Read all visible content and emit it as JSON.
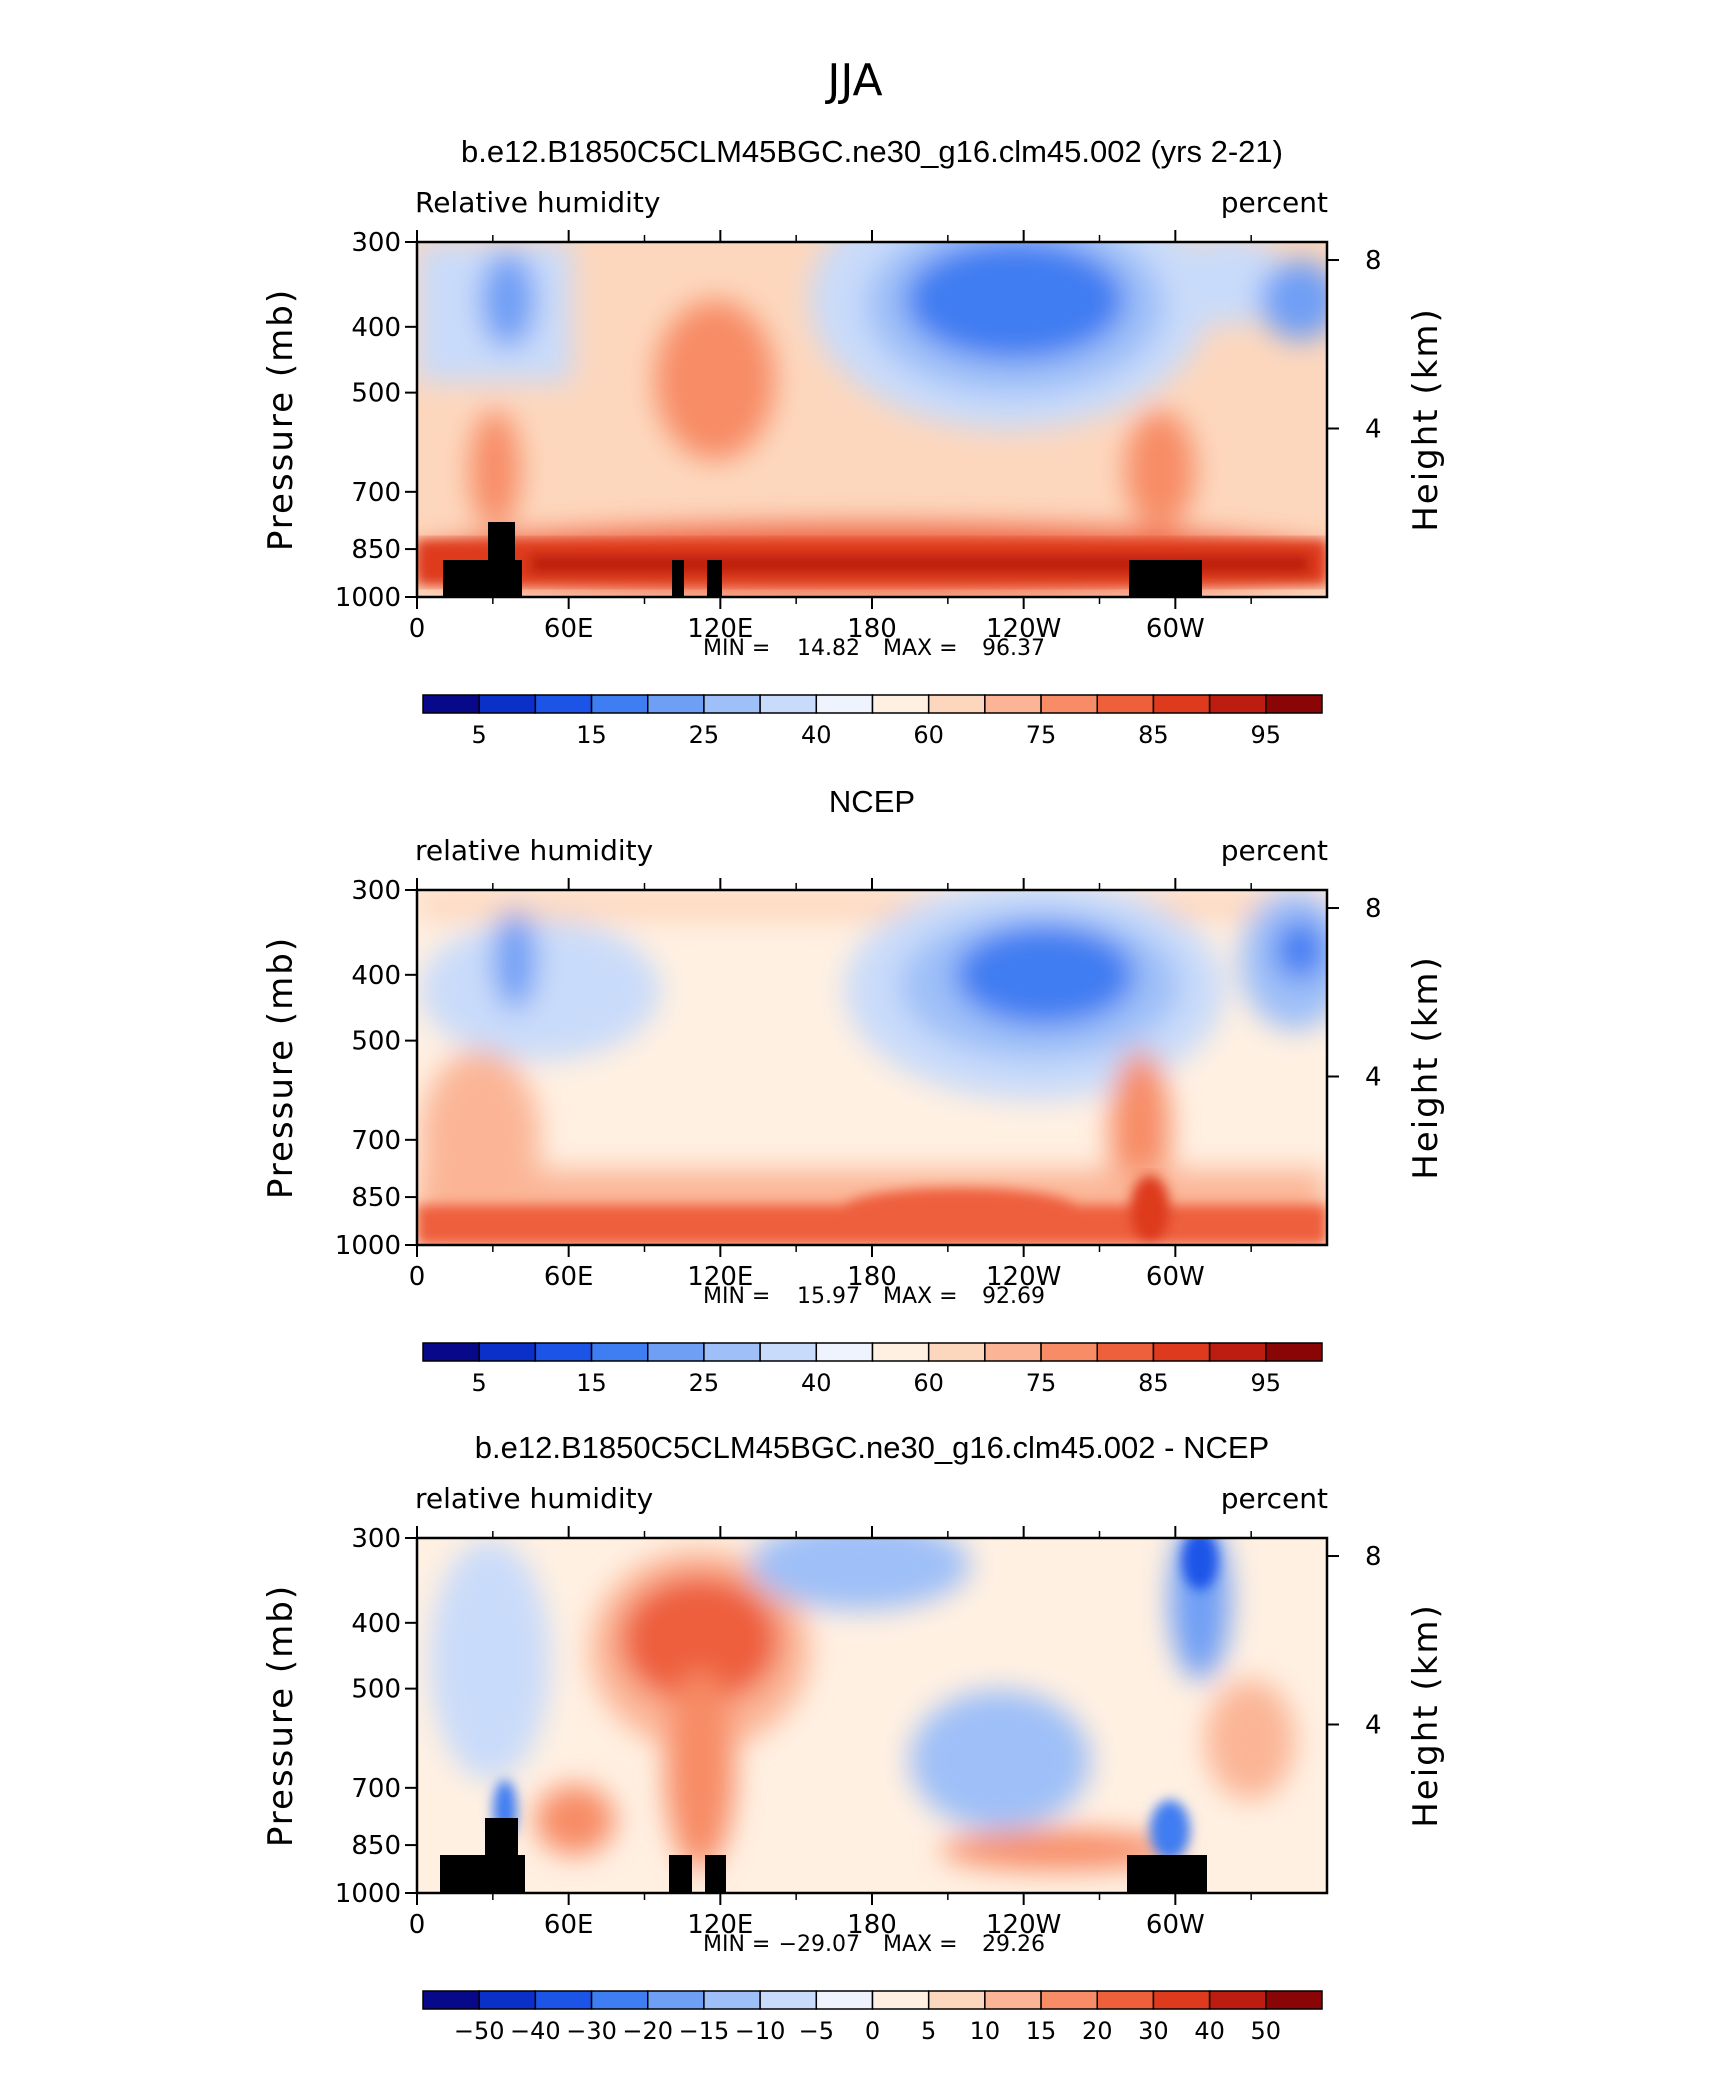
{
  "figure": {
    "title": "JJA",
    "footer_note": ""
  },
  "chart_data": [
    {
      "type": "heatmap",
      "title": "b.e12.B1850C5CLM45BGC.ne30_g16.clm45.002 (yrs 2-21)",
      "left_subtitle": "Relative humidity",
      "right_subtitle": "percent",
      "ylabel": "Pressure (mb)",
      "ylabel_right": "Height (km)",
      "y_ticks": [
        "300",
        "400",
        "500",
        "700",
        "850",
        "1000"
      ],
      "y_right_ticks": [
        "8",
        "4"
      ],
      "x_ticks": [
        "0",
        "60E",
        "120E",
        "180",
        "120W",
        "60W"
      ],
      "stats": {
        "min_label": "MIN =",
        "min": "14.82",
        "max_label": "MAX =",
        "max": "96.37"
      },
      "colorbar": {
        "labels": [
          "5",
          "15",
          "25",
          "40",
          "60",
          "75",
          "85",
          "95"
        ],
        "colors": [
          "#08088a",
          "#0b2fc9",
          "#1d54e8",
          "#3f7df2",
          "#6f9ff5",
          "#9ebff8",
          "#c9dbfa",
          "#eef3fd",
          "#fff0e2",
          "#fdd7bd",
          "#fbb596",
          "#f78c66",
          "#ee5f3c",
          "#de3a1d",
          "#bc1d10",
          "#8a0606"
        ]
      }
    },
    {
      "type": "heatmap",
      "title": "NCEP",
      "left_subtitle": "relative humidity",
      "right_subtitle": "percent",
      "ylabel": "Pressure (mb)",
      "ylabel_right": "Height (km)",
      "y_ticks": [
        "300",
        "400",
        "500",
        "700",
        "850",
        "1000"
      ],
      "y_right_ticks": [
        "8",
        "4"
      ],
      "x_ticks": [
        "0",
        "60E",
        "120E",
        "180",
        "120W",
        "60W"
      ],
      "stats": {
        "min_label": "MIN =",
        "min": "15.97",
        "max_label": "MAX =",
        "max": "92.69"
      },
      "colorbar": {
        "labels": [
          "5",
          "15",
          "25",
          "40",
          "60",
          "75",
          "85",
          "95"
        ],
        "colors": [
          "#08088a",
          "#0b2fc9",
          "#1d54e8",
          "#3f7df2",
          "#6f9ff5",
          "#9ebff8",
          "#c9dbfa",
          "#eef3fd",
          "#fff0e2",
          "#fdd7bd",
          "#fbb596",
          "#f78c66",
          "#ee5f3c",
          "#de3a1d",
          "#bc1d10",
          "#8a0606"
        ]
      }
    },
    {
      "type": "heatmap",
      "title": "b.e12.B1850C5CLM45BGC.ne30_g16.clm45.002 - NCEP",
      "left_subtitle": "relative humidity",
      "right_subtitle": "percent",
      "ylabel": "Pressure (mb)",
      "ylabel_right": "Height (km)",
      "y_ticks": [
        "300",
        "400",
        "500",
        "700",
        "850",
        "1000"
      ],
      "y_right_ticks": [
        "8",
        "4"
      ],
      "x_ticks": [
        "0",
        "60E",
        "120E",
        "180",
        "120W",
        "60W"
      ],
      "stats": {
        "min_label": "MIN =",
        "min": "−29.07",
        "max_label": "MAX =",
        "max": "29.26"
      },
      "colorbar": {
        "labels": [
          "−50",
          "−40",
          "−30",
          "−20",
          "−15",
          "−10",
          "−5",
          "0",
          "5",
          "10",
          "15",
          "20",
          "30",
          "40",
          "50"
        ],
        "colors": [
          "#08088a",
          "#0b2fc9",
          "#1d54e8",
          "#3f7df2",
          "#6f9ff5",
          "#9ebff8",
          "#c9dbfa",
          "#eef3fd",
          "#fff0e2",
          "#fdd7bd",
          "#fbb596",
          "#f78c66",
          "#ee5f3c",
          "#de3a1d",
          "#bc1d10",
          "#8a0606"
        ]
      }
    }
  ]
}
